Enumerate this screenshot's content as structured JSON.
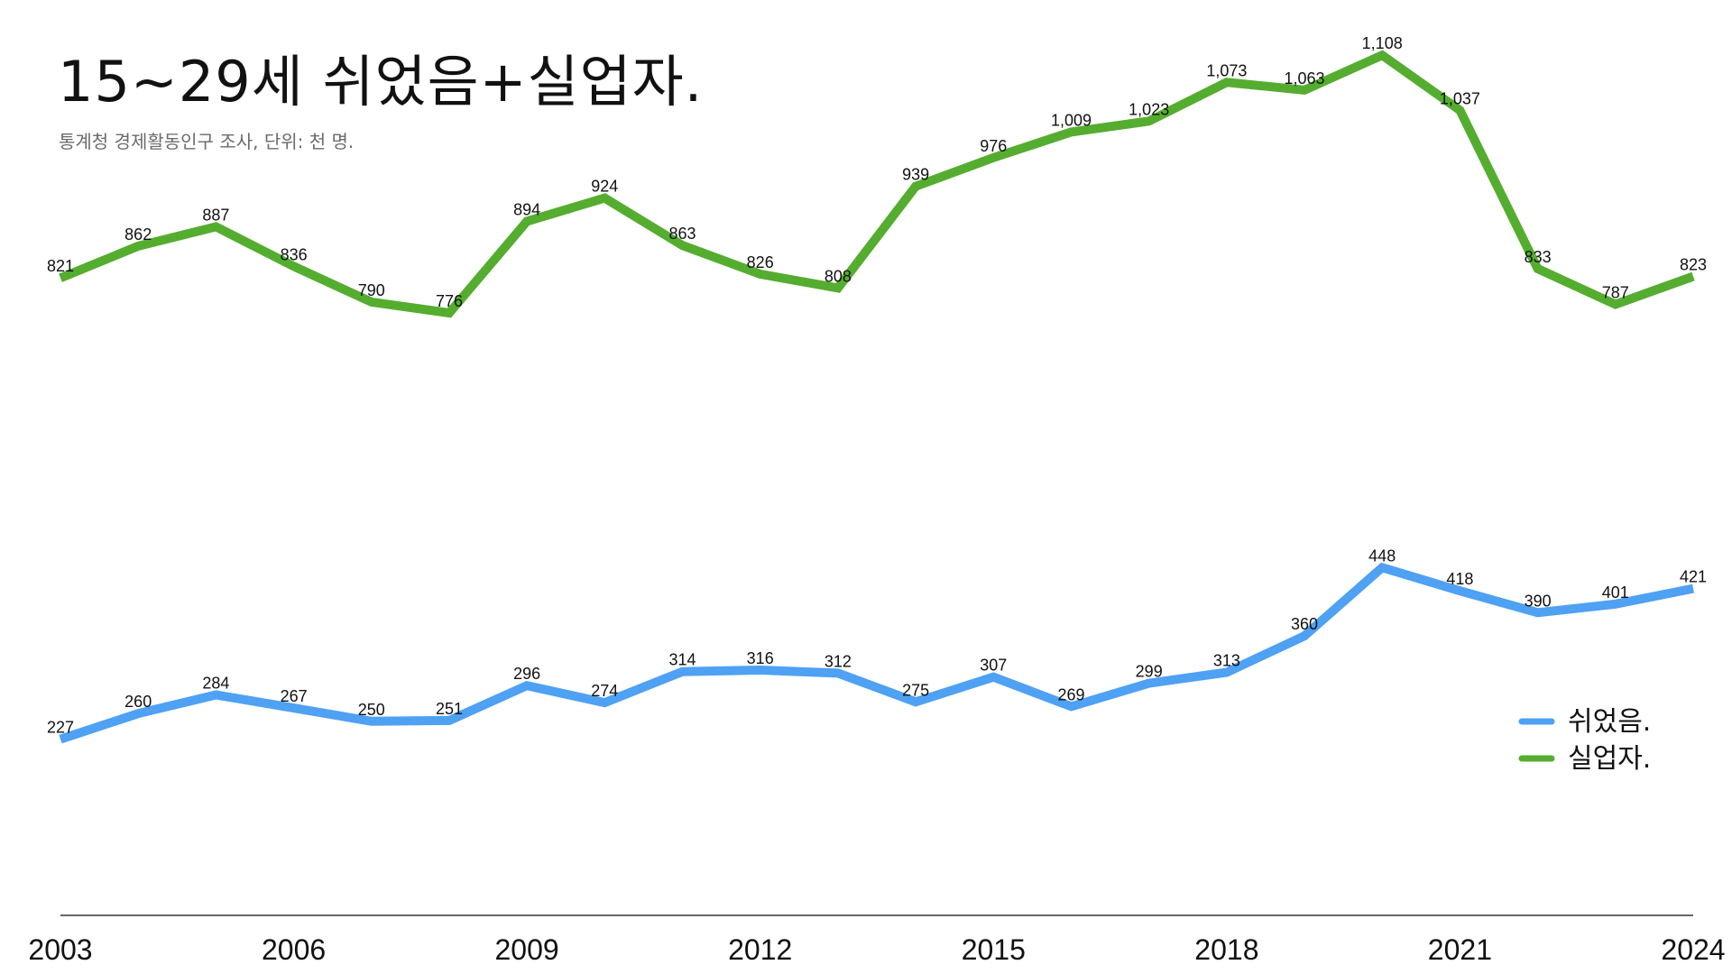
{
  "chart_data": {
    "type": "line",
    "title": "15~29세 쉬었음+실업자.",
    "subtitle": "통계청 경제활동인구 조사, 단위: 천 명.",
    "x": [
      2003,
      2004,
      2005,
      2006,
      2007,
      2008,
      2009,
      2010,
      2011,
      2012,
      2013,
      2014,
      2015,
      2016,
      2017,
      2018,
      2019,
      2020,
      2021,
      2022,
      2023,
      2024
    ],
    "x_tick_labels": [
      "2003",
      "2006",
      "2009",
      "2012",
      "2015",
      "2018",
      "2021",
      "2024"
    ],
    "x_ticks": [
      2003,
      2006,
      2009,
      2012,
      2015,
      2018,
      2021,
      2024
    ],
    "ylim": [
      0,
      1150
    ],
    "y_axis_visible": false,
    "grid": false,
    "legend_position": "right",
    "series": [
      {
        "name": "쉬었음.",
        "color": "#4ea1f3",
        "values": [
          227,
          260,
          284,
          267,
          250,
          251,
          296,
          274,
          314,
          316,
          312,
          275,
          307,
          269,
          299,
          313,
          360,
          448,
          418,
          390,
          401,
          421
        ],
        "labels": [
          "227",
          "260",
          "284",
          "267",
          "250",
          "251",
          "296",
          "274",
          "314",
          "316",
          "312",
          "275",
          "307",
          "269",
          "299",
          "313",
          "360",
          "448",
          "418",
          "390",
          "401",
          "421"
        ]
      },
      {
        "name": "실업자.",
        "color": "#55ad2f",
        "values": [
          821,
          862,
          887,
          836,
          790,
          776,
          894,
          924,
          863,
          826,
          808,
          939,
          976,
          1009,
          1023,
          1073,
          1063,
          1108,
          1037,
          833,
          787,
          823
        ],
        "labels": [
          "821",
          "862",
          "887",
          "836",
          "790",
          "776",
          "894",
          "924",
          "863",
          "826",
          "808",
          "939",
          "976",
          "1,009",
          "1,023",
          "1,073",
          "1,063",
          "1,108",
          "1,037",
          "833",
          "787",
          "823"
        ]
      }
    ]
  }
}
